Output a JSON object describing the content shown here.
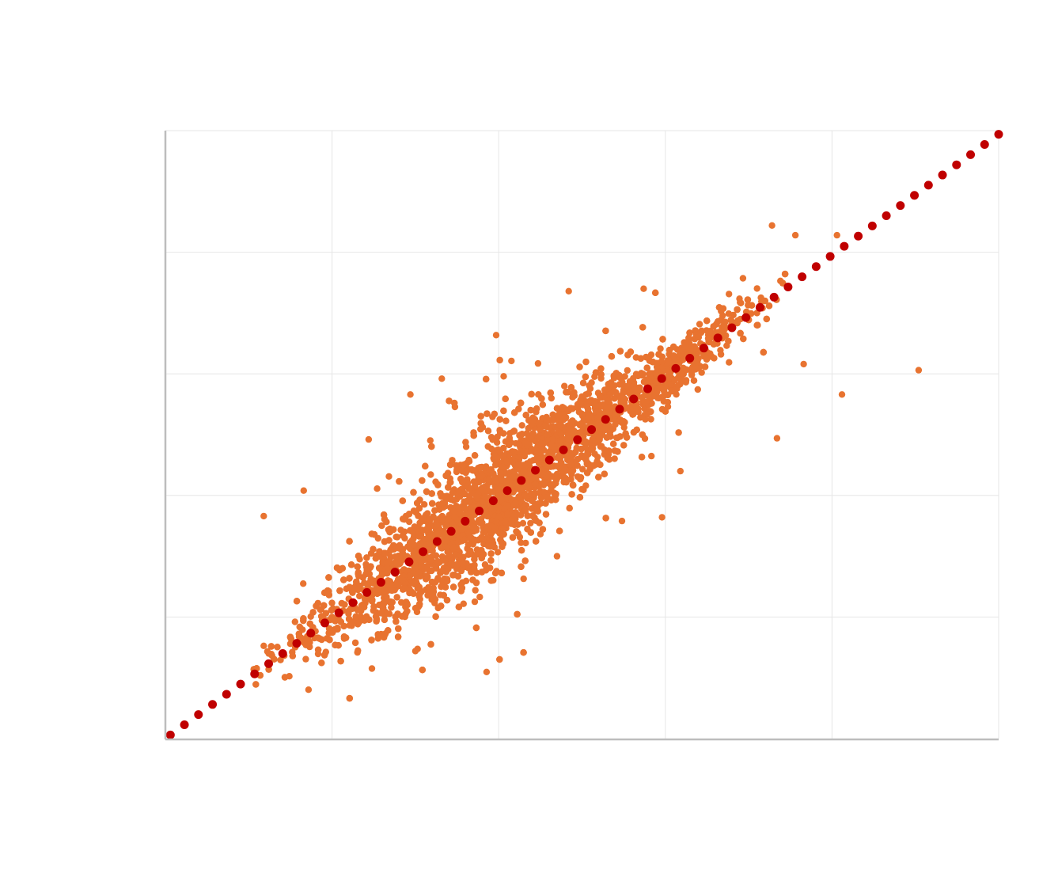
{
  "colors": {
    "background": "#ffffff",
    "grid": "#e6e6e6",
    "axis": "#bdbdbd",
    "scatter": "#e87330",
    "reference": "#c00000"
  },
  "chart_data": {
    "type": "scatter",
    "title": "",
    "xlabel": "",
    "ylabel": "",
    "xlim": [
      0,
      5
    ],
    "ylim": [
      0,
      5
    ],
    "x_gridlines": [
      1,
      2,
      3,
      4,
      5
    ],
    "y_gridlines": [
      1,
      2,
      3,
      4,
      5
    ],
    "grid": true,
    "tick_labels_visible": false,
    "legend": "none",
    "series": [
      {
        "kind": "scatter",
        "role": "observations",
        "color": "#e87330",
        "approx_point_count": 15000,
        "points_sample": [
          [
            0.53,
            0.57
          ],
          [
            0.62,
            0.7
          ],
          [
            0.75,
            0.78
          ],
          [
            0.85,
            0.82
          ],
          [
            0.95,
            0.95
          ],
          [
            1.0,
            1.0
          ],
          [
            1.1,
            1.15
          ],
          [
            1.2,
            1.22
          ],
          [
            1.3,
            1.35
          ],
          [
            1.45,
            1.5
          ],
          [
            1.55,
            1.6
          ],
          [
            1.7,
            1.8
          ],
          [
            1.85,
            1.9
          ],
          [
            2.0,
            2.05
          ],
          [
            2.15,
            2.2
          ],
          [
            2.3,
            2.35
          ],
          [
            2.45,
            2.5
          ],
          [
            2.6,
            2.65
          ],
          [
            2.75,
            2.8
          ],
          [
            2.9,
            2.95
          ],
          [
            3.05,
            3.15
          ],
          [
            3.2,
            3.3
          ],
          [
            3.35,
            3.4
          ],
          [
            3.45,
            3.45
          ],
          [
            3.55,
            3.5
          ],
          [
            0.59,
            1.83
          ],
          [
            0.83,
            2.04
          ],
          [
            1.22,
            2.46
          ],
          [
            1.47,
            2.83
          ],
          [
            2.03,
            2.98
          ],
          [
            2.42,
            3.68
          ],
          [
            2.87,
            3.7
          ],
          [
            3.64,
            4.22
          ],
          [
            3.78,
            4.14
          ],
          [
            4.03,
            4.14
          ],
          [
            3.55,
            3.4
          ],
          [
            3.83,
            3.08
          ],
          [
            3.67,
            2.47
          ],
          [
            4.06,
            2.83
          ],
          [
            4.52,
            3.03
          ],
          [
            3.09,
            2.2
          ],
          [
            2.98,
            1.82
          ],
          [
            2.35,
            1.5
          ],
          [
            1.5,
            0.72
          ],
          [
            2.74,
            1.79
          ]
        ]
      },
      {
        "kind": "dotted-line",
        "role": "reference",
        "color": "#c00000",
        "x": [
          0.03,
          5.0
        ],
        "y": [
          0.03,
          4.97
        ],
        "dot_count": 60
      }
    ]
  }
}
